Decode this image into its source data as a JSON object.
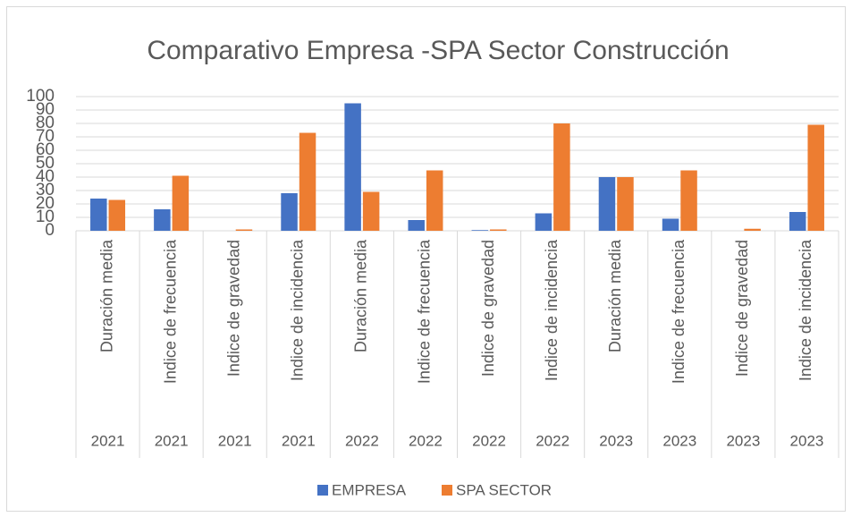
{
  "chart_data": {
    "type": "bar",
    "title": "Comparativo Empresa -SPA Sector Construcción",
    "categories": [
      "Duración media",
      "Indice de frecuencia",
      "Indice de gravedad",
      "Indice de incidencia",
      "Duración media",
      "Indice de frecuencia",
      "Indice de gravedad",
      "Indice de incidencia",
      "Duración media",
      "Indice de frecuencia",
      "Indice de gravedad",
      "Indice de incidencia"
    ],
    "category_groups": [
      "2021",
      "2021",
      "2021",
      "2021",
      "2022",
      "2022",
      "2022",
      "2022",
      "2023",
      "2023",
      "2023",
      "2023"
    ],
    "series": [
      {
        "name": "EMPRESA",
        "color": "#4472c4",
        "values": [
          24,
          16,
          0,
          28,
          95,
          8,
          0.5,
          13,
          40,
          9,
          0,
          14
        ]
      },
      {
        "name": "SPA SECTOR",
        "color": "#ed7d31",
        "values": [
          23,
          41,
          1,
          73,
          29,
          45,
          1,
          80,
          40,
          45,
          1.5,
          79
        ]
      }
    ],
    "ylim": [
      0,
      100
    ],
    "yticks": [
      0,
      10,
      20,
      30,
      40,
      50,
      60,
      70,
      80,
      90,
      100
    ],
    "grid": true,
    "legend": "bottom"
  }
}
